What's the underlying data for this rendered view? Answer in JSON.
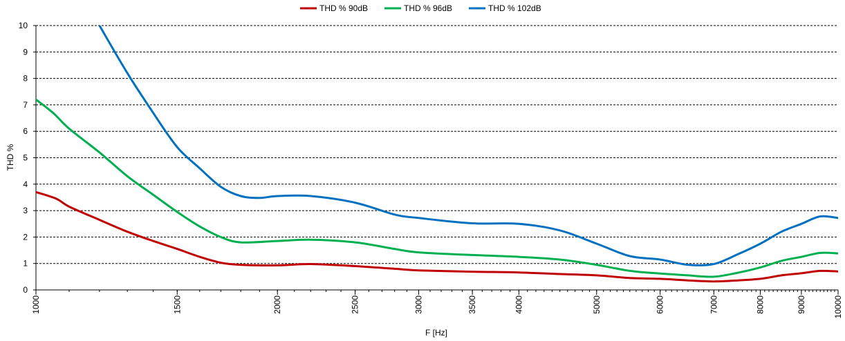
{
  "chart_data": {
    "type": "line",
    "title": "",
    "xlabel": "F [Hz]",
    "ylabel": "THD %",
    "x_scale": "log",
    "xlim": [
      1000,
      10000
    ],
    "ylim": [
      0,
      10
    ],
    "x_ticks": [
      1000,
      1500,
      2000,
      2500,
      3000,
      3500,
      4000,
      5000,
      6000,
      7000,
      8000,
      9000,
      10000
    ],
    "x_tick_labels": [
      "1000",
      "1500",
      "2000",
      "2500",
      "3000",
      "3500",
      "4000",
      "5000",
      "6000",
      "7000",
      "8000",
      "9000",
      "10000"
    ],
    "y_ticks": [
      0,
      1,
      2,
      3,
      4,
      5,
      6,
      7,
      8,
      9,
      10
    ],
    "y_tick_labels": [
      "0",
      "1",
      "2",
      "3",
      "4",
      "5",
      "6",
      "7",
      "8",
      "9",
      "10"
    ],
    "grid": "horizontal dashed",
    "legend_position": "top-center",
    "series": [
      {
        "name": "THD % 90dB",
        "color": "#c00000",
        "x": [
          1000,
          1060,
          1100,
          1200,
          1300,
          1400,
          1500,
          1600,
          1700,
          1800,
          2000,
          2200,
          2500,
          2800,
          3000,
          3500,
          4000,
          4500,
          5000,
          5500,
          6000,
          6500,
          7000,
          7500,
          8000,
          8500,
          9000,
          9500,
          10000
        ],
        "y": [
          3.7,
          3.45,
          3.15,
          2.65,
          2.2,
          1.85,
          1.55,
          1.25,
          1.03,
          0.95,
          0.93,
          0.98,
          0.9,
          0.8,
          0.74,
          0.69,
          0.66,
          0.6,
          0.55,
          0.45,
          0.42,
          0.36,
          0.32,
          0.36,
          0.42,
          0.55,
          0.63,
          0.72,
          0.7
        ]
      },
      {
        "name": "THD % 96dB",
        "color": "#00b050",
        "x": [
          1000,
          1050,
          1100,
          1200,
          1300,
          1400,
          1500,
          1600,
          1700,
          1800,
          2000,
          2200,
          2500,
          2800,
          3000,
          3500,
          4000,
          4500,
          5000,
          5500,
          6000,
          6500,
          7000,
          7500,
          8000,
          8500,
          9000,
          9500,
          10000
        ],
        "y": [
          7.2,
          6.7,
          6.1,
          5.2,
          4.3,
          3.6,
          2.95,
          2.4,
          2.0,
          1.8,
          1.85,
          1.9,
          1.8,
          1.55,
          1.42,
          1.32,
          1.25,
          1.15,
          0.95,
          0.72,
          0.62,
          0.55,
          0.5,
          0.65,
          0.85,
          1.1,
          1.25,
          1.4,
          1.38
        ]
      },
      {
        "name": "THD % 102dB",
        "color": "#0070c0",
        "x": [
          1200,
          1300,
          1400,
          1500,
          1600,
          1700,
          1800,
          1900,
          2000,
          2200,
          2500,
          2800,
          3000,
          3500,
          4000,
          4500,
          5000,
          5500,
          6000,
          6500,
          7000,
          7500,
          8000,
          8500,
          9000,
          9500,
          10000
        ],
        "y": [
          10.0,
          8.2,
          6.7,
          5.4,
          4.6,
          3.9,
          3.55,
          3.48,
          3.55,
          3.55,
          3.3,
          2.85,
          2.72,
          2.52,
          2.5,
          2.25,
          1.75,
          1.28,
          1.15,
          0.95,
          0.98,
          1.35,
          1.75,
          2.2,
          2.5,
          2.78,
          2.72
        ]
      }
    ]
  }
}
